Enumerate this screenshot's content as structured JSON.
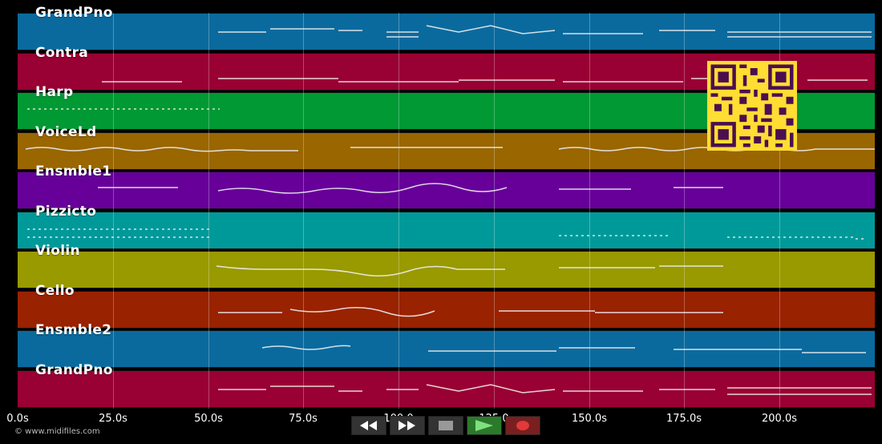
{
  "tracks": [
    {
      "name": "GrandPno",
      "color": "#0a6a9e"
    },
    {
      "name": "Contra",
      "color": "#990033"
    },
    {
      "name": "Harp",
      "color": "#009933"
    },
    {
      "name": "VoiceLd",
      "color": "#996600"
    },
    {
      "name": "Ensmble1",
      "color": "#660099"
    },
    {
      "name": "Pizzicto",
      "color": "#009999"
    },
    {
      "name": "Violin",
      "color": "#999900"
    },
    {
      "name": "Cello",
      "color": "#992200"
    },
    {
      "name": "Ensmble2",
      "color": "#0a6a9e"
    },
    {
      "name": "GrandPno",
      "color": "#990033"
    }
  ],
  "timeline": {
    "ticks": [
      "0.0s",
      "25.0s",
      "50.0s",
      "75.0s",
      "100.0",
      "125.0",
      "150.0s",
      "175.0s",
      "200.0s"
    ],
    "tick_seconds": [
      0,
      25,
      50,
      75,
      100,
      125,
      150,
      175,
      200
    ],
    "max_seconds": 225
  },
  "controls": {
    "rewind_icon": "rewind-icon",
    "forward_icon": "fast-forward-icon",
    "stop_icon": "stop-icon",
    "play_icon": "play-icon",
    "record_icon": "record-icon"
  },
  "footer": {
    "copyright": "© www.midifiles.com"
  },
  "qr": {
    "fg": "#4b0f4f",
    "bg": "#ffdd33"
  }
}
